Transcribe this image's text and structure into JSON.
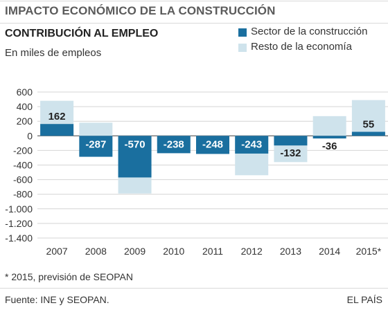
{
  "header": {
    "title": "IMPACTO ECONÓMICO DE LA CONSTRUCCIÓN",
    "subtitle": "CONTRIBUCIÓN AL EMPLEO",
    "units": "En miles de empleos"
  },
  "footer": {
    "footnote": "* 2015, previsión de SEOPAN",
    "source": "Fuente: INE y SEOPAN.",
    "brand": "EL PAÍS"
  },
  "colors": {
    "construction": "#1a6f9f",
    "rest": "#cfe3ec",
    "grid": "#d4d4d4",
    "zero_line": "#555555"
  },
  "chart_data": {
    "type": "bar",
    "stacked_overlay": true,
    "categories": [
      "2007",
      "2008",
      "2009",
      "2010",
      "2011",
      "2012",
      "2013",
      "2014",
      "2015*"
    ],
    "series": [
      {
        "name": "Sector de la construcción",
        "color": "#1a6f9f",
        "values": [
          162,
          -287,
          -570,
          -238,
          -248,
          -243,
          -132,
          -36,
          55
        ],
        "labels": [
          "162",
          "-287",
          "-570",
          "-238",
          "-248",
          "-243",
          "-132",
          "-36",
          "55"
        ]
      },
      {
        "name": "Resto de la economía",
        "color": "#cfe3ec",
        "values": [
          480,
          180,
          -790,
          -140,
          -60,
          -540,
          -360,
          270,
          490
        ]
      }
    ],
    "y_ticks": [
      600,
      400,
      200,
      0,
      -200,
      -400,
      -600,
      -800,
      -1000,
      -1200,
      -1400
    ],
    "y_tick_labels": [
      "600",
      "400",
      "200",
      "0",
      "-200",
      "-400",
      "-600",
      "-800",
      "-1.000",
      "-1.200",
      "-1.400"
    ],
    "ylim": [
      -1400,
      600
    ],
    "grid": true,
    "legend_position": "top-right"
  }
}
